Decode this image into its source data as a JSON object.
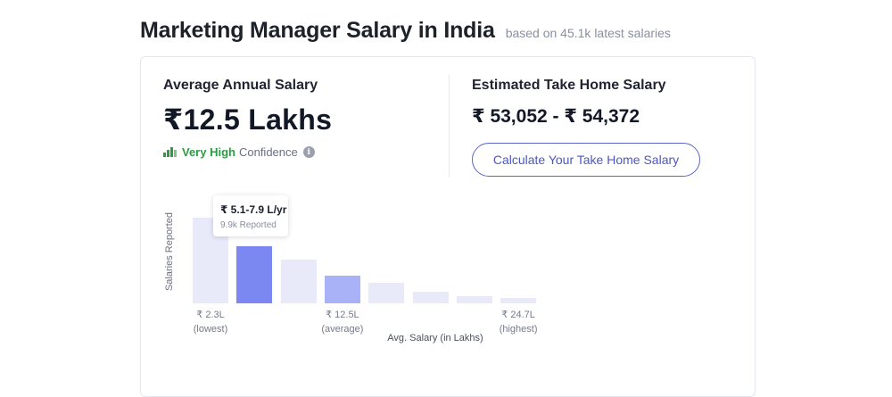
{
  "header": {
    "title": "Marketing Manager Salary in India",
    "subtitle": "based on 45.1k latest salaries"
  },
  "average": {
    "label": "Average Annual Salary",
    "value": "₹12.5 Lakhs",
    "confidence_level": "Very High",
    "confidence_text": "Confidence",
    "confidence_color": "#2e9b45"
  },
  "take_home": {
    "label": "Estimated Take Home Salary",
    "value": "₹ 53,052 - ₹ 54,372",
    "button_label": "Calculate Your Take Home Salary"
  },
  "chart_data": {
    "type": "bar",
    "ylabel": "Salaries Reported",
    "xlabel": "Avg. Salary (in Lakhs)",
    "bins": 8,
    "relative_heights": [
      1.0,
      0.67,
      0.51,
      0.32,
      0.24,
      0.14,
      0.08,
      0.06
    ],
    "highlighted_bin": 1,
    "average_bin": 3,
    "colors": {
      "default": "#e8eaf9",
      "highlighted": "#7c88f2",
      "average": "#a9b1f7"
    },
    "x_ticks": [
      {
        "bin": 0,
        "value": "₹ 2.3L",
        "note": "(lowest)"
      },
      {
        "bin": 3,
        "value": "₹ 12.5L",
        "note": "(average)"
      },
      {
        "bin": 7,
        "value": "₹ 24.7L",
        "note": "(highest)"
      }
    ],
    "tooltip": {
      "range": "₹ 5.1-7.9 L/yr",
      "count": "9.9k Reported"
    }
  }
}
